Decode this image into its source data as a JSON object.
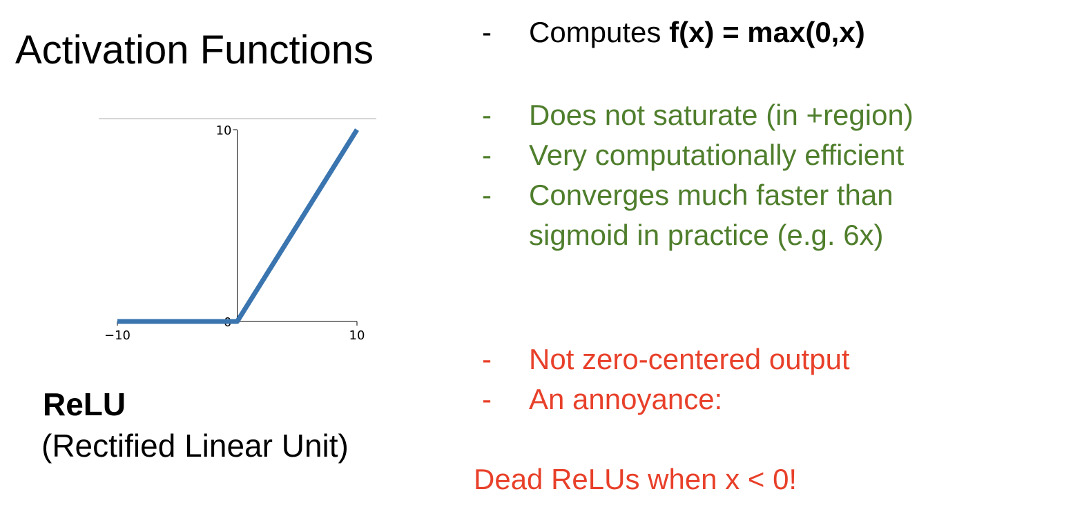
{
  "slide": {
    "title": "Activation Functions",
    "function_name": "ReLU",
    "function_full_name": "(Rectified Linear Unit)"
  },
  "chart_data": {
    "type": "line",
    "x_ticks": [
      "−10",
      "10"
    ],
    "y_ticks": [
      "10",
      "0"
    ],
    "xlim": [
      -10,
      10
    ],
    "ylim": [
      0,
      10
    ],
    "series": [
      {
        "x": [
          -10,
          0,
          10
        ],
        "y": [
          0,
          0,
          10
        ]
      }
    ],
    "color": "#3a75b0"
  },
  "formula": {
    "dash": "-",
    "prefix": "Computes ",
    "expression": "f(x) = max(0,x)"
  },
  "pros": [
    {
      "dash": "-",
      "text": "Does not saturate (in +region)"
    },
    {
      "dash": "-",
      "text": "Very computationally efficient"
    },
    {
      "dash": "-",
      "text": "Converges much faster than"
    }
  ],
  "pros_continuation": "sigmoid in practice (e.g. 6x)",
  "cons": [
    {
      "dash": "-",
      "text": "Not zero-centered output"
    },
    {
      "dash": "-",
      "text": "An annoyance:"
    }
  ],
  "note": "Dead ReLUs when x < 0!",
  "colors": {
    "pros": "#4f7e2c",
    "cons": "#e8402a"
  }
}
